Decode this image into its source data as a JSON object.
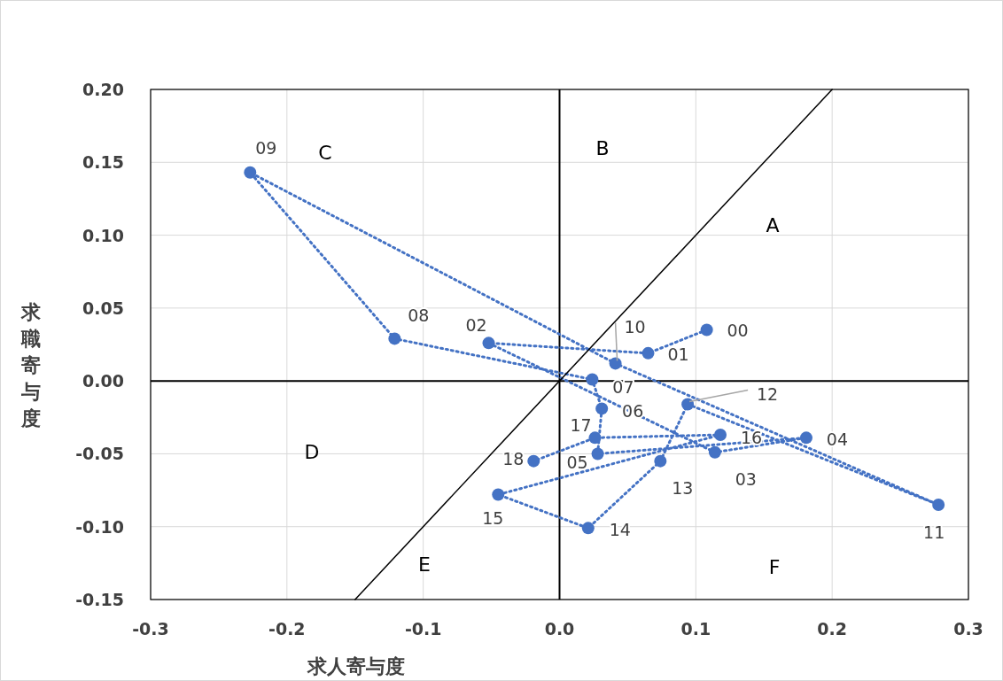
{
  "chart_data": {
    "type": "line",
    "xlabel": "求人寄与度",
    "ylabel": "求職寄与度",
    "xlim": [
      -0.3,
      0.3
    ],
    "xticks": [
      -0.3,
      -0.2,
      -0.1,
      {
        "value": 0,
        "label": "0.0"
      },
      0.1,
      0.2,
      0.3
    ],
    "ylim": [
      -0.15,
      0.2
    ],
    "yticks": [
      {
        "value": -0.15,
        "label": "-0.15"
      },
      {
        "value": -0.1,
        "label": "-0.10"
      },
      {
        "value": -0.05,
        "label": "-0.05"
      },
      {
        "value": 0,
        "label": "0.00"
      },
      {
        "value": 0.05,
        "label": "0.05"
      },
      {
        "value": 0.1,
        "label": "0.10"
      },
      {
        "value": 0.15,
        "label": "0.15"
      },
      {
        "value": 0.2,
        "label": "0.20"
      }
    ],
    "grid": true,
    "marker": "circle",
    "line_style": "dotted",
    "series": [
      {
        "color": "#4472c4",
        "x": [
          0.108,
          0.065,
          -0.052,
          0.114,
          0.181,
          0.028,
          0.031,
          0.024,
          -0.121,
          -0.227,
          0.041,
          0.278,
          0.094,
          0.074,
          0.021,
          -0.045,
          0.118,
          0.026,
          -0.019
        ],
        "values": [
          0.035,
          0.019,
          0.026,
          -0.049,
          -0.039,
          -0.05,
          -0.019,
          0.001,
          0.029,
          0.143,
          0.012,
          -0.085,
          -0.016,
          -0.055,
          -0.101,
          -0.078,
          -0.037,
          -0.039,
          -0.055
        ]
      },
      {
        "type": "line",
        "color": "#000000",
        "marker": "none",
        "line_style": "solid",
        "x": [
          -0.15,
          0.2
        ],
        "values": [
          -0.15,
          0.2
        ]
      }
    ],
    "annotations": [
      {
        "text": "00",
        "x": 0.108,
        "y": 0.035
      },
      {
        "text": "01",
        "x": 0.065,
        "y": 0.019
      },
      {
        "text": "02",
        "x": -0.052,
        "y": 0.026
      },
      {
        "text": "03",
        "x": 0.114,
        "y": -0.049
      },
      {
        "text": "04",
        "x": 0.181,
        "y": -0.039
      },
      {
        "text": "05",
        "x": 0.028,
        "y": -0.05
      },
      {
        "text": "06",
        "x": 0.031,
        "y": -0.019
      },
      {
        "text": "07",
        "x": 0.024,
        "y": 0.001
      },
      {
        "text": "08",
        "x": -0.121,
        "y": 0.029
      },
      {
        "text": "09",
        "x": -0.227,
        "y": 0.143
      },
      {
        "text": "10",
        "x": 0.041,
        "y": 0.012
      },
      {
        "text": "11",
        "x": 0.278,
        "y": -0.085
      },
      {
        "text": "12",
        "x": 0.094,
        "y": -0.016
      },
      {
        "text": "13",
        "x": 0.074,
        "y": -0.055
      },
      {
        "text": "14",
        "x": 0.021,
        "y": -0.101
      },
      {
        "text": "15",
        "x": -0.045,
        "y": -0.078
      },
      {
        "text": "16",
        "x": 0.118,
        "y": -0.037
      },
      {
        "text": "17",
        "x": 0.026,
        "y": -0.039
      },
      {
        "text": "18",
        "x": -0.019,
        "y": -0.055
      },
      "A",
      "B",
      "C",
      "D",
      "E",
      "F"
    ]
  }
}
